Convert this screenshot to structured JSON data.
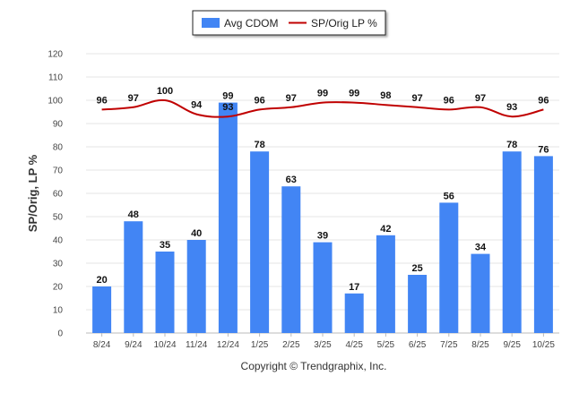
{
  "chart_data": {
    "type": "bar",
    "categories": [
      "8/24",
      "9/24",
      "10/24",
      "11/24",
      "12/24",
      "1/25",
      "2/25",
      "3/25",
      "4/25",
      "5/25",
      "6/25",
      "7/25",
      "8/25",
      "9/25",
      "10/25"
    ],
    "series": [
      {
        "name": "Avg CDOM",
        "type": "bar",
        "color": "#4285f4",
        "values": [
          20,
          48,
          35,
          40,
          99,
          78,
          63,
          39,
          17,
          42,
          25,
          56,
          34,
          78,
          76
        ]
      },
      {
        "name": "SP/Orig LP %",
        "type": "line",
        "color": "#c00000",
        "values": [
          96,
          97,
          100,
          94,
          93,
          96,
          97,
          99,
          99,
          98,
          97,
          96,
          97,
          93,
          96
        ]
      }
    ],
    "ylabel": "SP/Orig, LP %",
    "xlabel": "",
    "ylim": [
      0,
      120
    ],
    "yticks": [
      0,
      10,
      20,
      30,
      40,
      50,
      60,
      70,
      80,
      90,
      100,
      110,
      120
    ],
    "grid": true,
    "legend": "top-center"
  },
  "footer": {
    "copyright": "Copyright © Trendgraphix, Inc."
  }
}
